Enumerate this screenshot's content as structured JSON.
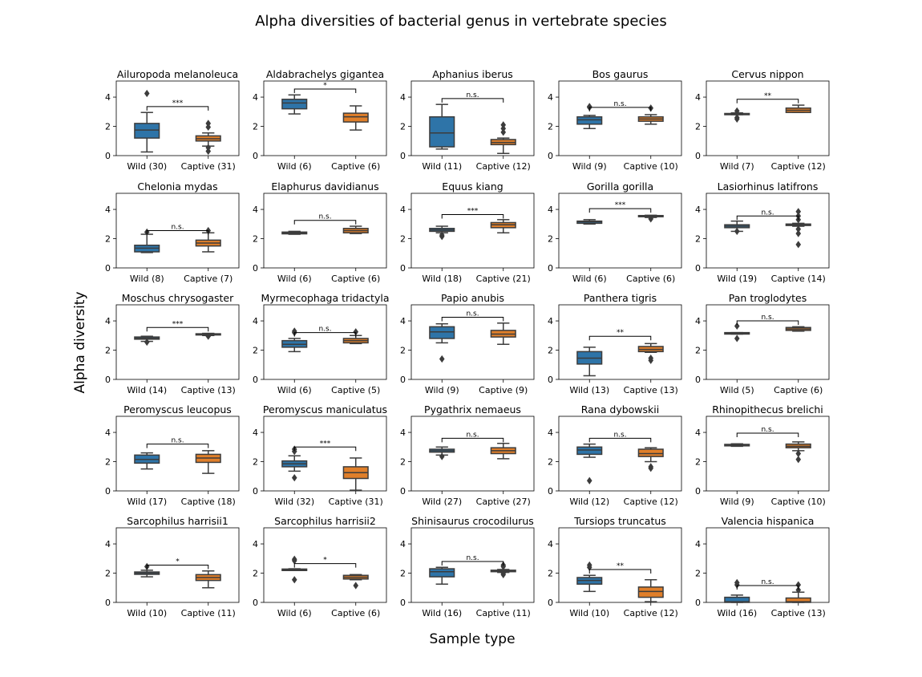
{
  "figure": {
    "title": "Alpha diversities of bacterial genus in vertebrate species",
    "ylabel": "Alpha diversity",
    "xlabel": "Sample type"
  },
  "colors": {
    "wild": "#2e74a8",
    "captive": "#e07f2a",
    "line": "#3c3c3c"
  },
  "chart_data": {
    "type": "box",
    "ylim": [
      0,
      5.1
    ],
    "yticks": [
      0,
      2,
      4
    ],
    "grid": false,
    "panels": [
      {
        "title": "Ailuropoda melanoleuca",
        "sig": "***",
        "bracket_y": 3.35,
        "groups": [
          {
            "label": "Wild (30)",
            "whislo": 0.25,
            "q1": 1.2,
            "med": 1.75,
            "q3": 2.2,
            "whishi": 2.95,
            "fliers": [
              4.25
            ]
          },
          {
            "label": "Captive (31)",
            "whislo": 0.65,
            "q1": 1.0,
            "med": 1.15,
            "q3": 1.35,
            "whishi": 1.55,
            "fliers": [
              2.2,
              1.95,
              0.55,
              0.3
            ]
          }
        ]
      },
      {
        "title": "Aldabrachelys gigantea",
        "sig": "*",
        "bracket_y": 4.55,
        "groups": [
          {
            "label": "Wild (6)",
            "whislo": 2.85,
            "q1": 3.2,
            "med": 3.6,
            "q3": 3.85,
            "whishi": 4.15,
            "fliers": []
          },
          {
            "label": "Captive (6)",
            "whislo": 1.75,
            "q1": 2.3,
            "med": 2.65,
            "q3": 2.9,
            "whishi": 3.4,
            "fliers": []
          }
        ]
      },
      {
        "title": "Aphanius iberus",
        "sig": "n.s.",
        "bracket_y": 3.9,
        "groups": [
          {
            "label": "Wild (11)",
            "whislo": 0.45,
            "q1": 0.6,
            "med": 1.55,
            "q3": 2.65,
            "whishi": 3.5,
            "fliers": []
          },
          {
            "label": "Captive (12)",
            "whislo": 0.15,
            "q1": 0.75,
            "med": 0.9,
            "q3": 1.1,
            "whishi": 1.2,
            "fliers": [
              2.1,
              1.85,
              1.6
            ]
          }
        ]
      },
      {
        "title": "Bos gaurus",
        "sig": "n.s.",
        "bracket_y": 3.3,
        "groups": [
          {
            "label": "Wild (9)",
            "whislo": 1.85,
            "q1": 2.15,
            "med": 2.45,
            "q3": 2.65,
            "whishi": 2.75,
            "fliers": [
              3.35,
              3.3
            ]
          },
          {
            "label": "Captive (10)",
            "whislo": 2.15,
            "q1": 2.35,
            "med": 2.5,
            "q3": 2.65,
            "whishi": 2.8,
            "fliers": [
              3.25
            ]
          }
        ]
      },
      {
        "title": "Cervus nippon",
        "sig": "**",
        "bracket_y": 3.85,
        "groups": [
          {
            "label": "Wild (7)",
            "whislo": 2.8,
            "q1": 2.8,
            "med": 2.85,
            "q3": 2.88,
            "whishi": 2.92,
            "fliers": [
              3.05,
              2.6,
              2.5
            ]
          },
          {
            "label": "Captive (12)",
            "whislo": 2.95,
            "q1": 2.95,
            "med": 3.1,
            "q3": 3.25,
            "whishi": 3.45,
            "fliers": []
          }
        ]
      },
      {
        "title": "Chelonia mydas",
        "sig": "n.s.",
        "bracket_y": 2.55,
        "groups": [
          {
            "label": "Wild (8)",
            "whislo": 1.05,
            "q1": 1.1,
            "med": 1.35,
            "q3": 1.55,
            "whishi": 2.3,
            "fliers": [
              2.45
            ]
          },
          {
            "label": "Captive (7)",
            "whislo": 1.1,
            "q1": 1.5,
            "med": 1.7,
            "q3": 1.9,
            "whishi": 2.4,
            "fliers": [
              2.55
            ]
          }
        ]
      },
      {
        "title": "Elaphurus davidianus",
        "sig": "n.s.",
        "bracket_y": 3.25,
        "groups": [
          {
            "label": "Wild (6)",
            "whislo": 2.3,
            "q1": 2.33,
            "med": 2.4,
            "q3": 2.45,
            "whishi": 2.5,
            "fliers": []
          },
          {
            "label": "Captive (6)",
            "whislo": 2.35,
            "q1": 2.4,
            "med": 2.55,
            "q3": 2.7,
            "whishi": 2.85,
            "fliers": []
          }
        ]
      },
      {
        "title": "Equus kiang",
        "sig": "***",
        "bracket_y": 3.65,
        "groups": [
          {
            "label": "Wild (18)",
            "whislo": 2.4,
            "q1": 2.5,
            "med": 2.6,
            "q3": 2.7,
            "whishi": 2.85,
            "fliers": [
              2.25,
              2.15
            ]
          },
          {
            "label": "Captive (21)",
            "whislo": 2.4,
            "q1": 2.75,
            "med": 2.95,
            "q3": 3.1,
            "whishi": 3.3,
            "fliers": []
          }
        ]
      },
      {
        "title": "Gorilla gorilla",
        "sig": "***",
        "bracket_y": 4.05,
        "groups": [
          {
            "label": "Wild (6)",
            "whislo": 3.0,
            "q1": 3.05,
            "med": 3.15,
            "q3": 3.2,
            "whishi": 3.3,
            "fliers": []
          },
          {
            "label": "Captive (6)",
            "whislo": 3.45,
            "q1": 3.5,
            "med": 3.55,
            "q3": 3.58,
            "whishi": 3.6,
            "fliers": [
              3.35
            ]
          }
        ]
      },
      {
        "title": "Lasiorhinus latifrons",
        "sig": "n.s.",
        "bracket_y": 3.55,
        "groups": [
          {
            "label": "Wild (19)",
            "whislo": 2.5,
            "q1": 2.75,
            "med": 2.85,
            "q3": 2.95,
            "whishi": 3.2,
            "fliers": [
              2.5
            ]
          },
          {
            "label": "Captive (14)",
            "whislo": 2.85,
            "q1": 2.9,
            "med": 2.95,
            "q3": 3.0,
            "whishi": 3.05,
            "fliers": [
              3.85,
              3.55,
              3.3,
              2.65,
              2.35,
              1.6
            ]
          }
        ]
      },
      {
        "title": "Moschus chrysogaster",
        "sig": "***",
        "bracket_y": 3.55,
        "groups": [
          {
            "label": "Wild (14)",
            "whislo": 2.6,
            "q1": 2.75,
            "med": 2.82,
            "q3": 2.9,
            "whishi": 2.95,
            "fliers": [
              2.55
            ]
          },
          {
            "label": "Captive (13)",
            "whislo": 3.0,
            "q1": 3.05,
            "med": 3.1,
            "q3": 3.12,
            "whishi": 3.15,
            "fliers": [
              2.95
            ]
          }
        ]
      },
      {
        "title": "Myrmecophaga tridactyla",
        "sig": "n.s.",
        "bracket_y": 3.2,
        "groups": [
          {
            "label": "Wild (6)",
            "whislo": 1.9,
            "q1": 2.2,
            "med": 2.4,
            "q3": 2.65,
            "whishi": 2.8,
            "fliers": [
              3.3,
              3.2
            ]
          },
          {
            "label": "Captive (5)",
            "whislo": 2.45,
            "q1": 2.5,
            "med": 2.65,
            "q3": 2.8,
            "whishi": 3.0,
            "fliers": [
              3.25
            ]
          }
        ]
      },
      {
        "title": "Papio anubis",
        "sig": "n.s.",
        "bracket_y": 4.25,
        "groups": [
          {
            "label": "Wild (9)",
            "whislo": 2.5,
            "q1": 2.8,
            "med": 3.25,
            "q3": 3.6,
            "whishi": 3.8,
            "fliers": [
              1.4
            ]
          },
          {
            "label": "Captive (9)",
            "whislo": 2.4,
            "q1": 2.9,
            "med": 3.1,
            "q3": 3.35,
            "whishi": 3.85,
            "fliers": []
          }
        ]
      },
      {
        "title": "Panthera tigris",
        "sig": "**",
        "bracket_y": 2.95,
        "groups": [
          {
            "label": "Wild (13)",
            "whislo": 0.25,
            "q1": 1.05,
            "med": 1.45,
            "q3": 1.9,
            "whishi": 2.2,
            "fliers": []
          },
          {
            "label": "Captive (13)",
            "whislo": 1.85,
            "q1": 1.9,
            "med": 2.05,
            "q3": 2.25,
            "whishi": 2.45,
            "fliers": [
              1.45,
              1.3
            ]
          }
        ]
      },
      {
        "title": "Pan troglodytes",
        "sig": "n.s.",
        "bracket_y": 4.0,
        "groups": [
          {
            "label": "Wild (5)",
            "whislo": 3.1,
            "q1": 3.1,
            "med": 3.15,
            "q3": 3.2,
            "whishi": 3.2,
            "fliers": [
              3.65,
              2.8
            ]
          },
          {
            "label": "Captive (6)",
            "whislo": 3.3,
            "q1": 3.35,
            "med": 3.45,
            "q3": 3.55,
            "whishi": 3.6,
            "fliers": []
          }
        ]
      },
      {
        "title": "Peromyscus leucopus",
        "sig": "n.s.",
        "bracket_y": 3.2,
        "groups": [
          {
            "label": "Wild (17)",
            "whislo": 1.5,
            "q1": 1.9,
            "med": 2.15,
            "q3": 2.45,
            "whishi": 2.6,
            "fliers": []
          },
          {
            "label": "Captive (18)",
            "whislo": 1.2,
            "q1": 1.95,
            "med": 2.25,
            "q3": 2.5,
            "whishi": 2.75,
            "fliers": []
          }
        ]
      },
      {
        "title": "Peromyscus maniculatus",
        "sig": "***",
        "bracket_y": 3.0,
        "groups": [
          {
            "label": "Wild (32)",
            "whislo": 1.35,
            "q1": 1.65,
            "med": 1.85,
            "q3": 2.05,
            "whishi": 2.4,
            "fliers": [
              2.85,
              2.7,
              0.9
            ]
          },
          {
            "label": "Captive (31)",
            "whislo": 0.05,
            "q1": 0.85,
            "med": 1.25,
            "q3": 1.65,
            "whishi": 2.25,
            "fliers": []
          }
        ]
      },
      {
        "title": "Pygathrix nemaeus",
        "sig": "n.s.",
        "bracket_y": 3.6,
        "groups": [
          {
            "label": "Wild (27)",
            "whislo": 2.45,
            "q1": 2.65,
            "med": 2.75,
            "q3": 2.85,
            "whishi": 3.0,
            "fliers": [
              2.35
            ]
          },
          {
            "label": "Captive (27)",
            "whislo": 2.2,
            "q1": 2.55,
            "med": 2.75,
            "q3": 2.95,
            "whishi": 3.25,
            "fliers": []
          }
        ]
      },
      {
        "title": "Rana dybowskii",
        "sig": "n.s.",
        "bracket_y": 3.6,
        "groups": [
          {
            "label": "Wild (12)",
            "whislo": 2.3,
            "q1": 2.5,
            "med": 2.8,
            "q3": 3.0,
            "whishi": 3.2,
            "fliers": [
              0.7
            ]
          },
          {
            "label": "Captive (12)",
            "whislo": 2.0,
            "q1": 2.35,
            "med": 2.55,
            "q3": 2.85,
            "whishi": 2.95,
            "fliers": [
              1.65,
              1.55
            ]
          }
        ]
      },
      {
        "title": "Rhinopithecus brelichi",
        "sig": "n.s.",
        "bracket_y": 3.95,
        "groups": [
          {
            "label": "Wild (9)",
            "whislo": 3.05,
            "q1": 3.08,
            "med": 3.12,
            "q3": 3.18,
            "whishi": 3.22,
            "fliers": []
          },
          {
            "label": "Captive (10)",
            "whislo": 2.75,
            "q1": 2.95,
            "med": 3.05,
            "q3": 3.2,
            "whishi": 3.35,
            "fliers": [
              2.55,
              2.15
            ]
          }
        ]
      },
      {
        "title": "Sarcophilus harrisii1",
        "sig": "*",
        "bracket_y": 2.55,
        "groups": [
          {
            "label": "Wild (10)",
            "whislo": 1.75,
            "q1": 1.92,
            "med": 2.0,
            "q3": 2.08,
            "whishi": 2.2,
            "fliers": [
              2.45
            ]
          },
          {
            "label": "Captive (11)",
            "whislo": 1.0,
            "q1": 1.5,
            "med": 1.7,
            "q3": 1.9,
            "whishi": 2.15,
            "fliers": []
          }
        ]
      },
      {
        "title": "Sarcophilus harrisii2",
        "sig": "*",
        "bracket_y": 2.65,
        "groups": [
          {
            "label": "Wild (6)",
            "whislo": 2.18,
            "q1": 2.18,
            "med": 2.22,
            "q3": 2.28,
            "whishi": 2.3,
            "fliers": [
              2.95,
              2.85,
              1.55
            ]
          },
          {
            "label": "Captive (6)",
            "whislo": 1.55,
            "q1": 1.6,
            "med": 1.72,
            "q3": 1.85,
            "whishi": 1.9,
            "fliers": [
              1.15
            ]
          }
        ]
      },
      {
        "title": "Shinisaurus crocodilurus",
        "sig": "n.s.",
        "bracket_y": 2.8,
        "groups": [
          {
            "label": "Wild (16)",
            "whislo": 1.25,
            "q1": 1.75,
            "med": 2.1,
            "q3": 2.3,
            "whishi": 2.4,
            "fliers": []
          },
          {
            "label": "Captive (11)",
            "whislo": 2.05,
            "q1": 2.1,
            "med": 2.15,
            "q3": 2.2,
            "whishi": 2.25,
            "fliers": [
              2.55,
              2.45,
              2.0,
              1.9
            ]
          }
        ]
      },
      {
        "title": "Tursiops truncatus",
        "sig": "**",
        "bracket_y": 2.25,
        "groups": [
          {
            "label": "Wild (10)",
            "whislo": 0.75,
            "q1": 1.25,
            "med": 1.5,
            "q3": 1.7,
            "whishi": 1.85,
            "fliers": [
              2.55,
              2.4
            ]
          },
          {
            "label": "Captive (12)",
            "whislo": 0.05,
            "q1": 0.35,
            "med": 0.75,
            "q3": 1.05,
            "whishi": 1.55,
            "fliers": []
          }
        ]
      },
      {
        "title": "Valencia hispanica",
        "sig": "n.s.",
        "bracket_y": 1.15,
        "groups": [
          {
            "label": "Wild (16)",
            "whislo": 0.0,
            "q1": 0.0,
            "med": 0.05,
            "q3": 0.35,
            "whishi": 0.5,
            "fliers": [
              1.35,
              1.2
            ]
          },
          {
            "label": "Captive (13)",
            "whislo": 0.0,
            "q1": 0.0,
            "med": 0.05,
            "q3": 0.3,
            "whishi": 0.7,
            "fliers": [
              1.2,
              0.85
            ]
          }
        ]
      }
    ]
  }
}
